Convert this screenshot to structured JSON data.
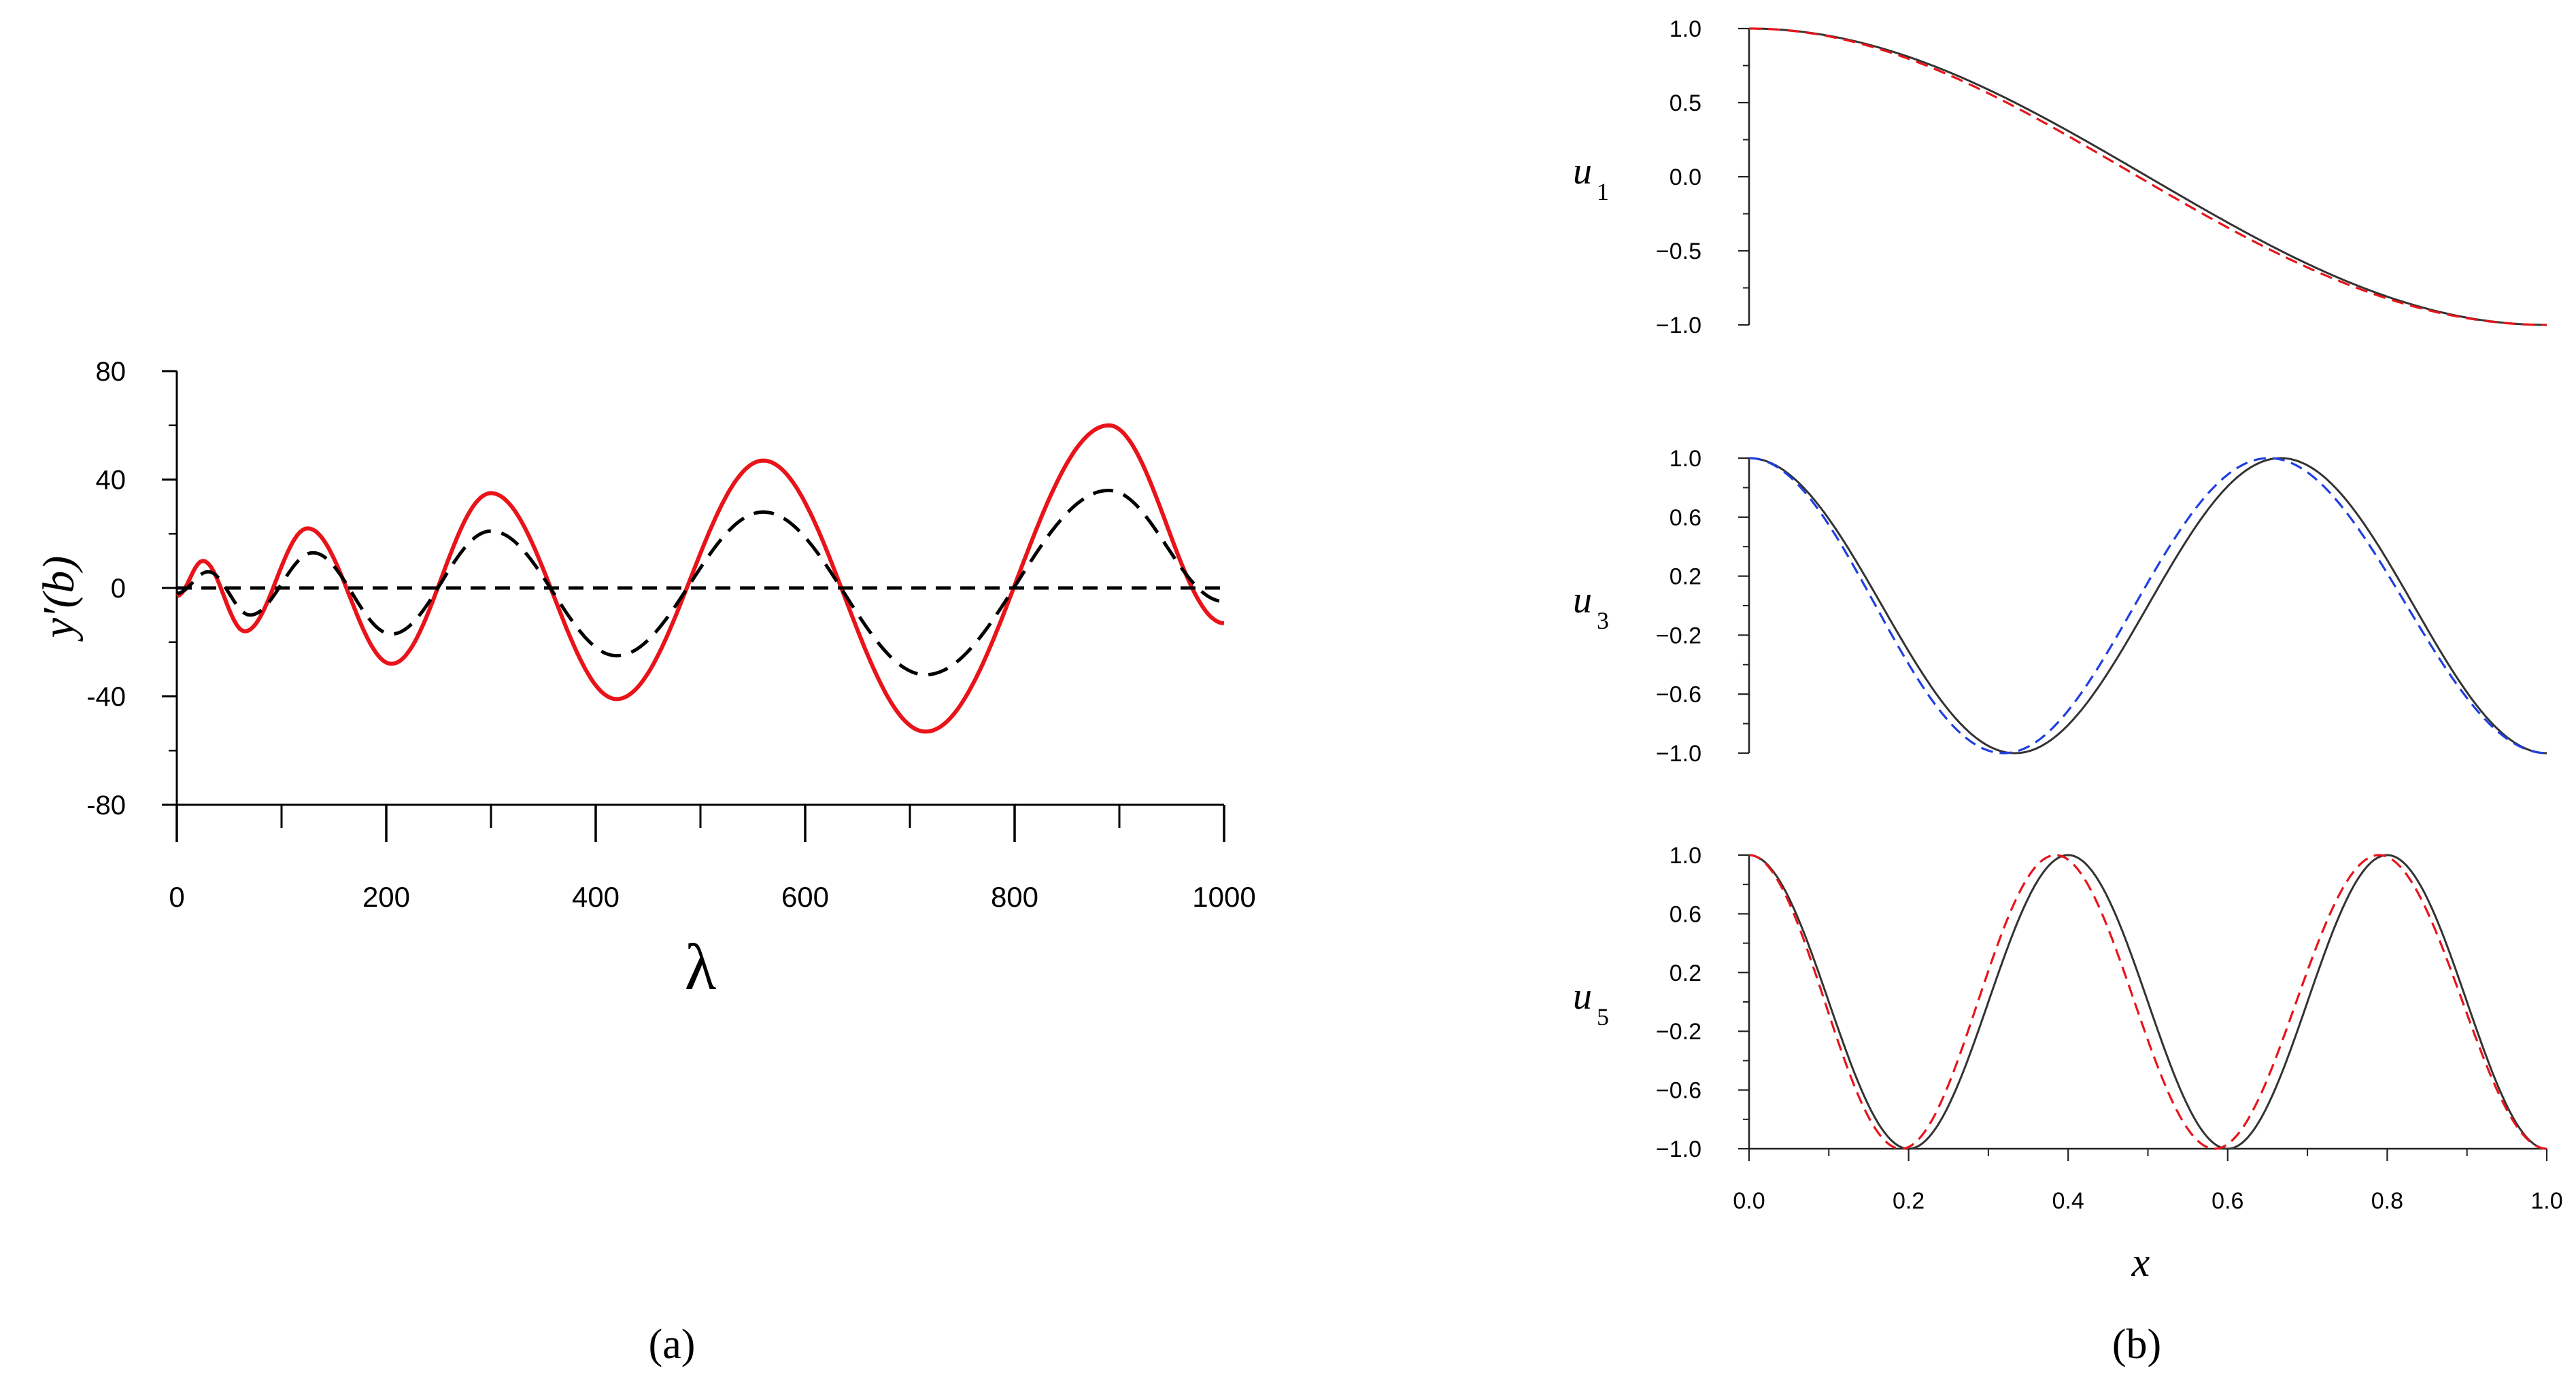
{
  "chart_data": [
    {
      "panel_label": "(a)",
      "type": "line",
      "xlabel": "λ",
      "ylabel": "y′(b)",
      "xlim": [
        0,
        1000
      ],
      "ylim": [
        -80,
        80
      ],
      "x_ticks": [
        0,
        200,
        400,
        600,
        800,
        1000
      ],
      "y_ticks": [
        80,
        40,
        0,
        -40,
        -80
      ],
      "grid": false,
      "legend": "none",
      "series": [
        {
          "style": "solid",
          "color": "#e8141a",
          "x": [
            0,
            25,
            65,
            125,
            205,
            300,
            420,
            560,
            715,
            890,
            1000
          ],
          "y": [
            -3,
            10,
            -16,
            22,
            -28,
            35,
            -41,
            47,
            -53,
            60,
            -13
          ]
        },
        {
          "style": "dashed",
          "color": "#000000",
          "x": [
            0,
            30,
            70,
            130,
            205,
            300,
            420,
            560,
            715,
            890,
            1000
          ],
          "y": [
            -2,
            6,
            -10,
            13,
            -17,
            21,
            -25,
            28,
            -32,
            36,
            -5
          ]
        },
        {
          "style": "dashed",
          "color": "#000000",
          "x": [
            0,
            1000
          ],
          "y": [
            0,
            0
          ]
        }
      ]
    },
    {
      "panel_label": "(b)",
      "type": "line",
      "xlabel": "x",
      "xlim": [
        0,
        1
      ],
      "x_ticks": [
        "0.0",
        "0.2",
        "0.4",
        "0.6",
        "0.8",
        "1.0"
      ],
      "grid": false,
      "legend": "none",
      "subplots": [
        {
          "ylabel": "u1",
          "ylabel_main": "u",
          "ylabel_sub": "1",
          "ylim": [
            -1,
            1
          ],
          "y_ticks": [
            "1.0",
            "0.5",
            "0.0",
            "-0.5",
            "-1.0"
          ],
          "series": [
            {
              "style": "solid",
              "color": "#333333",
              "func": "cos",
              "k": 3.1416,
              "x": [
                0,
                1
              ]
            },
            {
              "style": "dashed",
              "color": "#e8141a",
              "func": "cos_warp",
              "k": 3.1416,
              "x": [
                0,
                1
              ]
            }
          ]
        },
        {
          "ylabel": "u3",
          "ylabel_main": "u",
          "ylabel_sub": "3",
          "ylim": [
            -1,
            1
          ],
          "y_ticks": [
            "1.0",
            "0.6",
            "0.2",
            "-0.2",
            "-0.6",
            "-1.0"
          ],
          "series": [
            {
              "style": "solid",
              "color": "#333333",
              "func": "cos",
              "k": 9.4248,
              "x": [
                0,
                1
              ]
            },
            {
              "style": "dashed",
              "color": "#1f3fe0",
              "func": "cos_warp",
              "k": 9.4248,
              "x": [
                0,
                1
              ]
            }
          ]
        },
        {
          "ylabel": "u5",
          "ylabel_main": "u",
          "ylabel_sub": "5",
          "ylim": [
            -1,
            1
          ],
          "y_ticks": [
            "1.0",
            "0.6",
            "0.2",
            "-0.2",
            "-0.6",
            "-1.0"
          ],
          "series": [
            {
              "style": "solid",
              "color": "#333333",
              "func": "cos",
              "k": 15.708,
              "x": [
                0,
                1
              ]
            },
            {
              "style": "dashed",
              "color": "#e8141a",
              "func": "cos_warp",
              "k": 15.708,
              "x": [
                0,
                1
              ]
            }
          ]
        }
      ]
    }
  ]
}
